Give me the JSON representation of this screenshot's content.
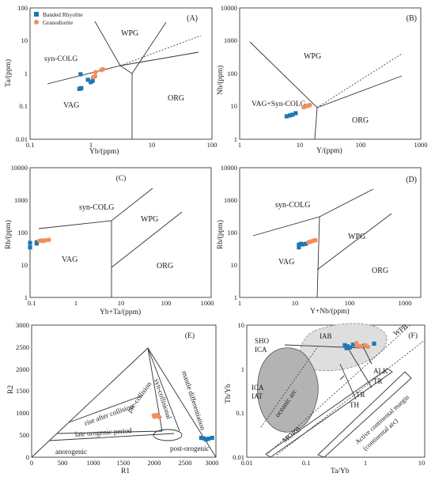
{
  "colors": {
    "rhyolite": "#1f77b4",
    "granodiorite": "#f28e5c",
    "oceanic_fill": "#b3b3b3",
    "iab_fill": "#dedede"
  },
  "legend": [
    {
      "label": "Banded Rhyolite",
      "symbol": "square",
      "color": "#1f77b4"
    },
    {
      "label": "Granodiorite",
      "symbol": "circle",
      "color": "#f28e5c"
    }
  ],
  "chart_data": [
    {
      "panel": "(A)",
      "type": "scatter",
      "xscale": "log",
      "yscale": "log",
      "xlabel": "Yb/(ppm)",
      "ylabel": "Ta/(ppm)",
      "xlim": [
        0.1,
        100
      ],
      "ylim": [
        0.01,
        100
      ],
      "xticks": [
        "0.1",
        "1",
        "10",
        "100"
      ],
      "yticks": [
        "0.01",
        "0.1",
        "1",
        "10",
        "100"
      ],
      "fields": [
        "WPG",
        "syn-COLG",
        "VAG",
        "ORG"
      ],
      "series": [
        {
          "name": "Banded Rhyolite",
          "points": [
            [
              0.65,
              0.34
            ],
            [
              0.68,
              0.35
            ],
            [
              0.7,
              0.36
            ],
            [
              0.68,
              0.95
            ],
            [
              0.9,
              0.65
            ],
            [
              1.0,
              0.55
            ],
            [
              1.08,
              0.6
            ]
          ]
        },
        {
          "name": "Granodiorite",
          "points": [
            [
              1.1,
              0.78
            ],
            [
              1.18,
              0.82
            ],
            [
              1.2,
              1.1
            ],
            [
              1.5,
              1.3
            ],
            [
              1.6,
              1.35
            ]
          ]
        }
      ]
    },
    {
      "panel": "(B)",
      "type": "scatter",
      "xscale": "log",
      "yscale": "log",
      "xlabel": "Y/(ppm)",
      "ylabel": "Nb/(ppm)",
      "xlim": [
        1,
        1000
      ],
      "ylim": [
        1,
        10000
      ],
      "xticks": [
        "1",
        "10",
        "100",
        "1000"
      ],
      "yticks": [
        "1",
        "10",
        "100",
        "1000",
        "10000"
      ],
      "fields": [
        "WPG",
        "VAG+Syn-COLG",
        "ORG"
      ],
      "series": [
        {
          "name": "Banded Rhyolite",
          "points": [
            [
              6.0,
              5.0
            ],
            [
              6.8,
              5.3
            ],
            [
              7.5,
              5.6
            ],
            [
              8.5,
              6.2
            ]
          ]
        },
        {
          "name": "Granodiorite",
          "points": [
            [
              11.5,
              9.5
            ],
            [
              12.5,
              10.0
            ],
            [
              13.5,
              10.5
            ],
            [
              14.5,
              11.0
            ]
          ]
        }
      ]
    },
    {
      "panel": "(C)",
      "type": "scatter",
      "xscale": "log",
      "yscale": "log",
      "xlabel": "Yb+Ta/(ppm)",
      "ylabel": "Rb/(ppm)",
      "xlim": [
        0.1,
        1000
      ],
      "ylim": [
        1,
        10000
      ],
      "xticks": [
        "0.1",
        "1",
        "10",
        "100",
        "1000"
      ],
      "yticks": [
        "1",
        "10",
        "100",
        "1000",
        "10000"
      ],
      "fields": [
        "syn-COLG",
        "WPG",
        "VAG",
        "ORG"
      ],
      "series": [
        {
          "name": "Banded Rhyolite",
          "points": [
            [
              0.1,
              35
            ],
            [
              0.1,
              48
            ],
            [
              0.14,
              46
            ],
            [
              0.14,
              50
            ]
          ]
        },
        {
          "name": "Granodiorite",
          "points": [
            [
              0.16,
              55
            ],
            [
              0.18,
              57
            ],
            [
              0.2,
              55
            ],
            [
              0.22,
              58
            ],
            [
              0.26,
              60
            ]
          ]
        }
      ]
    },
    {
      "panel": "(D)",
      "type": "scatter",
      "xscale": "log",
      "yscale": "log",
      "xlabel": "Y+Nb/(ppm)",
      "ylabel": "Rb/(ppm)",
      "xlim": [
        1,
        2000
      ],
      "ylim": [
        1,
        10000
      ],
      "xticks": [
        "1",
        "10",
        "100",
        "1000"
      ],
      "yticks": [
        "1",
        "10",
        "100",
        "1000",
        "10000"
      ],
      "fields": [
        "syn-COLG",
        "WPG",
        "VAG",
        "ORG"
      ],
      "series": [
        {
          "name": "Banded Rhyolite",
          "points": [
            [
              12,
              35
            ],
            [
              12,
              42
            ],
            [
              13,
              45
            ],
            [
              14,
              43
            ],
            [
              16,
              45
            ]
          ]
        },
        {
          "name": "Granodiorite",
          "points": [
            [
              18,
              50
            ],
            [
              20,
              53
            ],
            [
              22,
              56
            ],
            [
              24,
              58
            ]
          ]
        }
      ]
    },
    {
      "panel": "(E)",
      "type": "scatter",
      "xscale": "linear",
      "yscale": "linear",
      "xlabel": "R1",
      "ylabel": "R2",
      "xlim": [
        0,
        3000
      ],
      "ylim": [
        0,
        3000
      ],
      "xticks": [
        "0",
        "500",
        "1000",
        "1500",
        "2000",
        "2500",
        "3000"
      ],
      "yticks": [
        "0",
        "500",
        "1000",
        "1500",
        "2000",
        "2500",
        "3000"
      ],
      "fields": [
        "mantle differentiation",
        "syn-collisional",
        "pre-collision",
        "rise after collision",
        "late orogenic period",
        "anorogenic",
        "post-orogenic"
      ],
      "series": [
        {
          "name": "Banded Rhyolite",
          "points": [
            [
              2760,
              440
            ],
            [
              2840,
              400
            ],
            [
              2880,
              420
            ],
            [
              2940,
              440
            ],
            [
              2800,
              430
            ]
          ]
        },
        {
          "name": "Granodiorite",
          "points": [
            [
              2000,
              920
            ],
            [
              2030,
              940
            ],
            [
              2060,
              930
            ],
            [
              2080,
              910
            ],
            [
              2040,
              960
            ],
            [
              1990,
              950
            ]
          ]
        }
      ]
    },
    {
      "panel": "(F)",
      "type": "scatter",
      "xscale": "log",
      "yscale": "log",
      "xlabel": "Ta/Yb",
      "ylabel": "Th/Yb",
      "xlim": [
        0.01,
        10
      ],
      "ylim": [
        0.01,
        10
      ],
      "xticks": [
        "0.01",
        "0.1",
        "1",
        "10"
      ],
      "yticks": [
        "0.01",
        "0.1",
        "1",
        "10"
      ],
      "fields": [
        "SHO",
        "ICA",
        "IAB",
        "WPB",
        "ALK",
        "TR",
        "TH",
        "ICA",
        "IAT",
        "oceanic arc",
        "MORB",
        "Active continental margin",
        "(continental arc)"
      ],
      "series": [
        {
          "name": "Banded Rhyolite",
          "points": [
            [
              0.45,
              3.5
            ],
            [
              0.48,
              3.0
            ],
            [
              0.5,
              3.3
            ],
            [
              0.55,
              3.1
            ],
            [
              0.62,
              3.6
            ],
            [
              0.95,
              3.4
            ],
            [
              1.4,
              3.8
            ]
          ]
        },
        {
          "name": "Granodiorite",
          "points": [
            [
              0.7,
              3.9
            ],
            [
              0.75,
              3.4
            ],
            [
              0.85,
              3.3
            ],
            [
              1.0,
              3.5
            ],
            [
              1.1,
              3.2
            ]
          ]
        }
      ]
    }
  ]
}
